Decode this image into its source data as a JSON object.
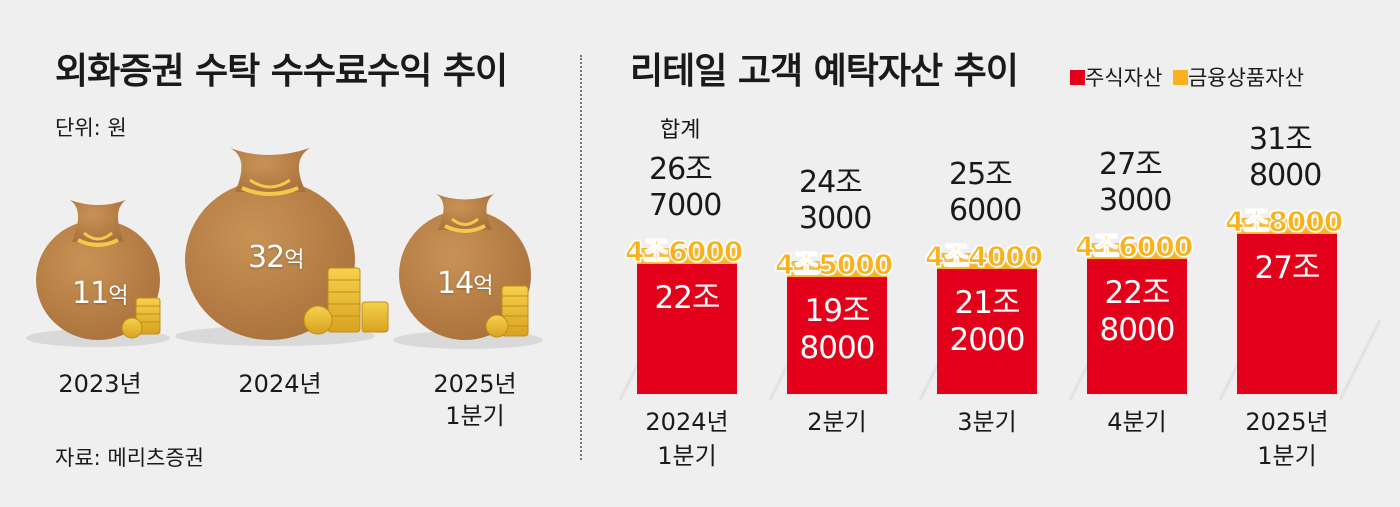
{
  "left": {
    "title": "외화증권 수탁 수수료수익 추이",
    "unit": "단위: 원",
    "source": "자료: 메리츠증권",
    "colors": {
      "bag": "#b57a3d",
      "coin": "#e6b32a"
    }
  },
  "right": {
    "title": "리테일 고객 예탁자산 추이",
    "legend": {
      "stock": "주식자산",
      "finance": "금융상품자산"
    },
    "total_header": "합계",
    "colors": {
      "stock": "#e3001b",
      "finance": "#f7b21e"
    }
  },
  "chart_data": [
    {
      "type": "bar",
      "title": "외화증권 수탁 수수료수익 추이",
      "unit": "원",
      "categories": [
        "2023년",
        "2024년",
        "2025년 1분기"
      ],
      "values": [
        1100000000,
        3200000000,
        1400000000
      ],
      "labels": [
        {
          "num": "11",
          "unit": "억"
        },
        {
          "num": "32",
          "unit": "억"
        },
        {
          "num": "14",
          "unit": "억"
        }
      ],
      "category_labels": [
        "2023년",
        "2024년",
        "2025년\n1분기"
      ]
    },
    {
      "type": "bar",
      "stacked": true,
      "title": "리테일 고객 예탁자산 추이",
      "categories": [
        "2024년 1분기",
        "2분기",
        "3분기",
        "4분기",
        "2025년 1분기"
      ],
      "category_labels": [
        "2024년\n1분기",
        "2분기",
        "3분기",
        "4분기",
        "2025년\n1분기"
      ],
      "series": [
        {
          "name": "주식자산",
          "values": [
            220000,
            198000,
            212000,
            228000,
            270000
          ],
          "labels": [
            "22조",
            "19조\n8000",
            "21조\n2000",
            "22조\n8000",
            "27조"
          ]
        },
        {
          "name": "금융상품자산",
          "values": [
            46000,
            45000,
            44000,
            46000,
            48000
          ],
          "labels": [
            "4조6000",
            "4조5000",
            "4조4000",
            "4조6000",
            "4조8000"
          ]
        }
      ],
      "totals": [
        267000,
        243000,
        256000,
        273000,
        318000
      ],
      "total_labels": [
        "26조\n7000",
        "24조\n3000",
        "25조\n6000",
        "27조\n3000",
        "31조\n8000"
      ]
    }
  ]
}
